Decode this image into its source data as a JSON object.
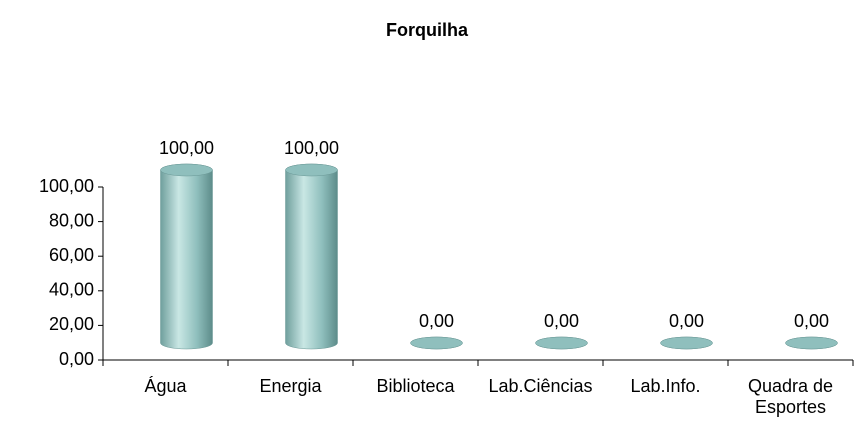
{
  "chart_data": {
    "type": "bar",
    "title": "Forquilha",
    "categories": [
      "Água",
      "Energia",
      "Biblioteca",
      "Lab.Ciências",
      "Lab.Info.",
      "Quadra de Esportes"
    ],
    "values": [
      100,
      100,
      0,
      0,
      0,
      0
    ],
    "value_labels": [
      "100,00",
      "100,00",
      "0,00",
      "0,00",
      "0,00",
      "0,00"
    ],
    "color": "#8fbfbd",
    "ylim": [
      0,
      100
    ],
    "yticks": [
      {
        "value": 0,
        "label": "0,00"
      },
      {
        "value": 20,
        "label": "20,00"
      },
      {
        "value": 40,
        "label": "40,00"
      },
      {
        "value": 60,
        "label": "60,00"
      },
      {
        "value": 80,
        "label": "80,00"
      },
      {
        "value": 100,
        "label": "100,00"
      }
    ],
    "grid": false
  }
}
